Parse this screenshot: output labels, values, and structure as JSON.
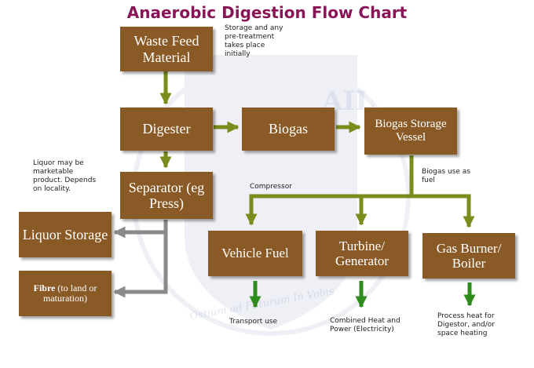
{
  "title": "Anaerobic Digestion Flow Chart",
  "colors": {
    "box": "#8a5a26",
    "title": "#8a1458",
    "olive_arrow": "#7a8c1c",
    "grey_arrow": "#8a8a8a",
    "green_arrow": "#2e8b1e"
  },
  "watermark": {
    "text": "Ostium ad Futurum In Vobis",
    "initials": "AIL"
  },
  "boxes": {
    "waste_feed": "Waste Feed Material",
    "digester": "Digester",
    "biogas": "Biogas",
    "biogas_storage": "Biogas Storage Vessel",
    "separator": "Separator (eg Press)",
    "liquor_storage": "Liquor Storage",
    "fibre_bold": "Fibre",
    "fibre_rest": "(to land or maturation)",
    "vehicle_fuel": "Vehicle Fuel",
    "turbine": "Turbine/ Generator",
    "gas_burner": "Gas Burner/ Boiler"
  },
  "notes": {
    "storage": "Storage and any pre-treatment takes place initially",
    "liquor": "Liquor may be marketable product. Depends on locality.",
    "compressor": "Compressor",
    "biogas_use": "Biogas use as fuel",
    "transport": "Transport use",
    "chp": "Combined Heat and Power (Electricity)",
    "process_heat": "Process heat for Digestor, and/or space heating"
  }
}
